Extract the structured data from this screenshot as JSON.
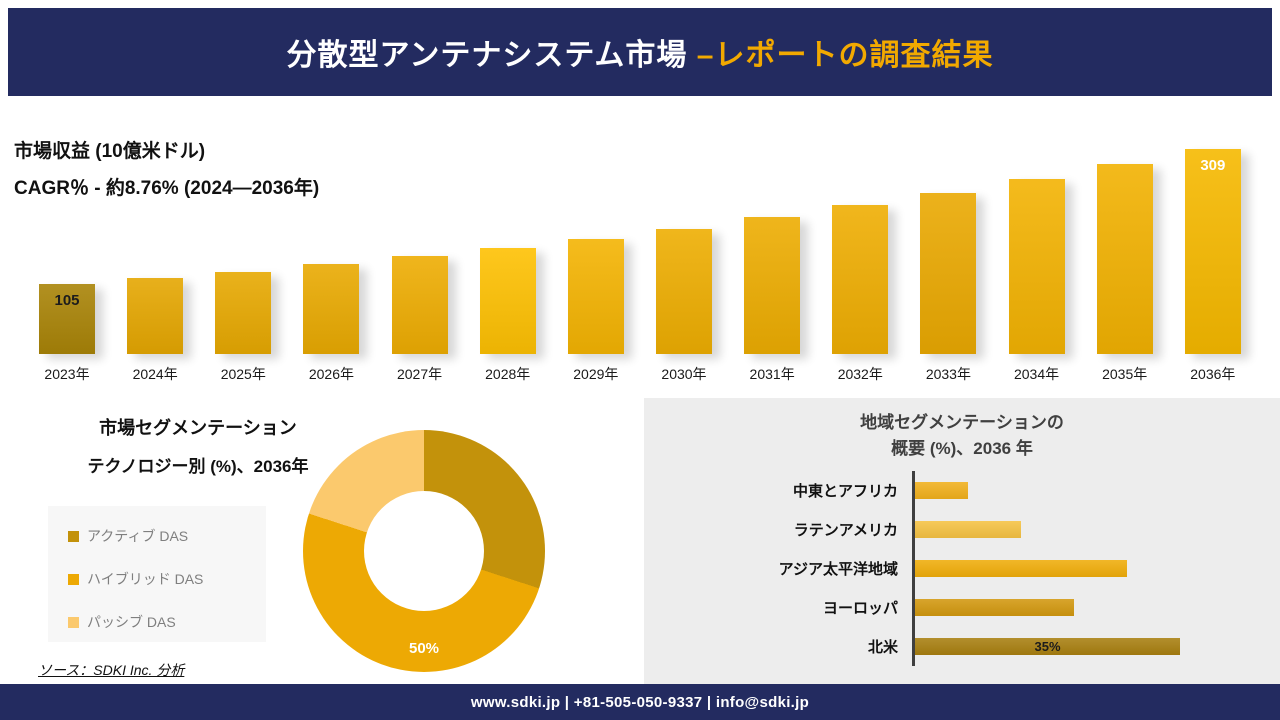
{
  "header": {
    "title_main": "分散型アンテナシステム市場 ",
    "title_accent": "–レポートの調査結果"
  },
  "footer": {
    "text": "www.sdki.jp | +81-505-050-9337 | info@sdki.jp"
  },
  "source_note": "ソース：SDKI Inc. 分析",
  "colors": {
    "navy": "#232b60",
    "accent_gold": "#f2a900",
    "panel_gray": "#ededed",
    "legend_panel": "#f7f7f7"
  },
  "chart_data": [
    {
      "type": "bar",
      "orientation": "vertical",
      "title": "市場収益 (10億米ドル)",
      "subtitle": "CAGR％ - 約8.76% (2024―2036年)",
      "categories": [
        "2023年",
        "2024年",
        "2025年",
        "2026年",
        "2027年",
        "2028年",
        "2029年",
        "2030年",
        "2031年",
        "2032年",
        "2033年",
        "2034年",
        "2035年",
        "2036年"
      ],
      "values": [
        105,
        114,
        124,
        135,
        147,
        160,
        174,
        189,
        206,
        224,
        243,
        264,
        287,
        309
      ],
      "ylim": [
        0,
        309
      ],
      "grid": false,
      "colors": [
        "#a98408",
        "#e5a702",
        "#e7a902",
        "#e9aa02",
        "#eead03",
        "#fec103",
        "#f4b403",
        "#eeae02",
        "#edad02",
        "#efae03",
        "#eaa902",
        "#f3b303",
        "#f2b202",
        "#f6b900"
      ],
      "point_labels": [
        {
          "category": "2023年",
          "text": "105",
          "color": "#1c1c1c"
        },
        {
          "category": "2036年",
          "text": "309",
          "color": "#ffffff"
        }
      ]
    },
    {
      "type": "pie",
      "title": "市場セグメンテーション",
      "subtitle": "テクノロジー別 (%)、2036年",
      "slices": [
        {
          "label": "アクティブ DAS",
          "value": 30,
          "color": "#c3920b"
        },
        {
          "label": "ハイブリッド DAS",
          "value": 50,
          "color": "#eda904"
        },
        {
          "label": "パッシブ DAS",
          "value": 20,
          "color": "#fbc96d"
        }
      ],
      "center_label": "50%",
      "legend_position": "left"
    },
    {
      "type": "bar",
      "orientation": "horizontal",
      "title": "地域セグメンテーションの概要 (%)、2036 年",
      "title_line1": "地域セグメンテーションの",
      "title_line2": "概要 (%)、2036 年",
      "categories": [
        "中東とアフリカ",
        "ラテンアメリカ",
        "アジア太平洋地域",
        "ヨーロッパ",
        "北米"
      ],
      "values": [
        7,
        14,
        28,
        21,
        35
      ],
      "xlim": [
        0,
        35
      ],
      "grid": false,
      "colors": [
        "#f1b01c",
        "#f5c243",
        "#f0ad0a",
        "#d2980f",
        "#a87f10"
      ],
      "point_labels": [
        {
          "category": "北米",
          "text": "35%",
          "color": "#1c1c1c"
        }
      ]
    }
  ]
}
